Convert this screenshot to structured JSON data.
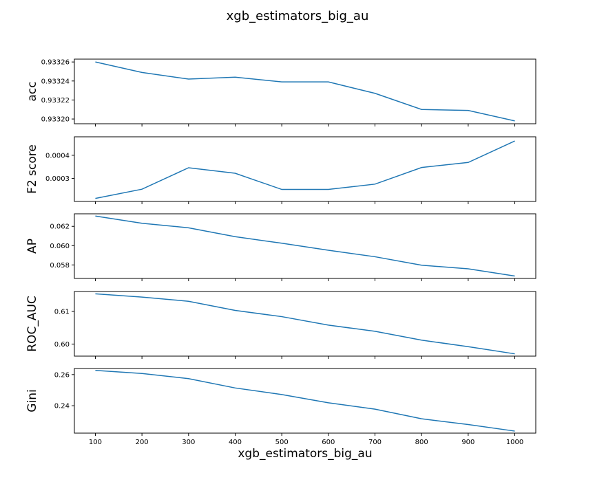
{
  "chart_data": {
    "type": "line",
    "title": "xgb_estimators_big_au",
    "xlabel": "xgb_estimators_big_au",
    "line_color": "#1f77b4",
    "x": [
      100,
      200,
      300,
      400,
      500,
      600,
      700,
      800,
      900,
      1000
    ],
    "x_tick_labels": [
      "100",
      "200",
      "300",
      "400",
      "500",
      "600",
      "700",
      "800",
      "900",
      "1000"
    ],
    "xlim": [
      55,
      1045
    ],
    "subplots": [
      {
        "ylabel": "acc",
        "values": [
          0.93326,
          0.933249,
          0.933242,
          0.933244,
          0.933239,
          0.933239,
          0.933227,
          0.93321,
          0.933209,
          0.933198
        ],
        "ylim": [
          0.933195,
          0.933263
        ],
        "yticks": [
          0.9332,
          0.93322,
          0.93324,
          0.93326
        ],
        "ytick_labels": [
          "0.93320",
          "0.93322",
          "0.93324",
          "0.93326"
        ]
      },
      {
        "ylabel": "F2 score",
        "values": [
          0.000213,
          0.000253,
          0.000346,
          0.000322,
          0.000252,
          0.000252,
          0.000275,
          0.000347,
          0.000369,
          0.000462
        ],
        "ylim": [
          0.0002,
          0.00048
        ],
        "yticks": [
          0.0003,
          0.0004
        ],
        "ytick_labels": [
          "0.0003",
          "0.0004"
        ]
      },
      {
        "ylabel": "AP",
        "values": [
          0.06307,
          0.06232,
          0.06185,
          0.06093,
          0.06025,
          0.05952,
          0.05885,
          0.05797,
          0.0576,
          0.05685
        ],
        "ylim": [
          0.0566,
          0.0633
        ],
        "yticks": [
          0.058,
          0.06,
          0.062
        ],
        "ytick_labels": [
          "0.058",
          "0.060",
          "0.062"
        ]
      },
      {
        "ylabel": "ROC_AUC",
        "values": [
          0.6154,
          0.6144,
          0.6131,
          0.6103,
          0.6084,
          0.6058,
          0.6039,
          0.6012,
          0.5992,
          0.597
        ],
        "ylim": [
          0.5963,
          0.6161
        ],
        "yticks": [
          0.6,
          0.61
        ],
        "ytick_labels": [
          "0.60",
          "0.61"
        ]
      },
      {
        "ylabel": "Gini",
        "values": [
          0.2627,
          0.2607,
          0.2574,
          0.2514,
          0.2472,
          0.2419,
          0.2378,
          0.2316,
          0.2279,
          0.2237
        ],
        "ylim": [
          0.2224,
          0.2639
        ],
        "yticks": [
          0.24,
          0.26
        ],
        "ytick_labels": [
          "0.24",
          "0.26"
        ]
      }
    ]
  }
}
